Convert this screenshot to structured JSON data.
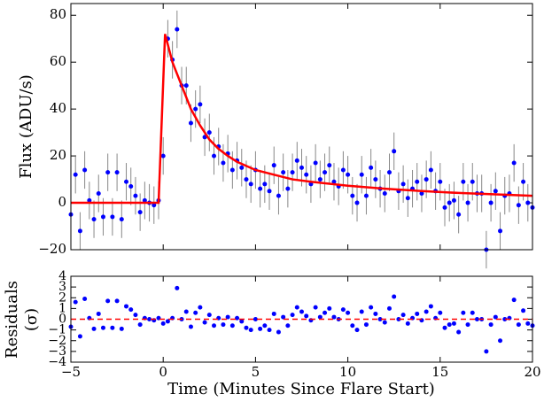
{
  "chart_data": [
    {
      "type": "scatter",
      "ylabel": "Flux (ADU/s)",
      "x": [
        -5,
        -4.75,
        -4.5,
        -4.25,
        -4,
        -3.75,
        -3.5,
        -3.25,
        -3,
        -2.75,
        -2.5,
        -2.25,
        -2,
        -1.75,
        -1.5,
        -1.25,
        -1,
        -0.75,
        -0.5,
        -0.25,
        0,
        0.25,
        0.5,
        0.75,
        1,
        1.25,
        1.5,
        1.75,
        2,
        2.25,
        2.5,
        2.75,
        3,
        3.25,
        3.5,
        3.75,
        4,
        4.25,
        4.5,
        4.75,
        5,
        5.25,
        5.5,
        5.75,
        6,
        6.25,
        6.5,
        6.75,
        7,
        7.25,
        7.5,
        7.75,
        8,
        8.25,
        8.5,
        8.75,
        9,
        9.25,
        9.5,
        9.75,
        10,
        10.25,
        10.5,
        10.75,
        11,
        11.25,
        11.5,
        11.75,
        12,
        12.25,
        12.5,
        12.75,
        13,
        13.25,
        13.5,
        13.75,
        14,
        14.25,
        14.5,
        14.75,
        15,
        15.25,
        15.5,
        15.75,
        16,
        16.25,
        16.5,
        16.75,
        17,
        17.25,
        17.5,
        17.75,
        18,
        18.25,
        18.5,
        18.75,
        19,
        19.25,
        19.5,
        19.75,
        20
      ],
      "series": [
        {
          "color": "#0000ff",
          "yerr": 8,
          "values": [
            -5,
            12,
            -12,
            14,
            1,
            -7,
            4,
            -6,
            13,
            -6,
            13,
            -7,
            9,
            7,
            3,
            -4,
            1,
            0,
            -1,
            1,
            20,
            70,
            61,
            74,
            50,
            50,
            34,
            40,
            42,
            28,
            30,
            20,
            24,
            17,
            21,
            14,
            18,
            15,
            10,
            8,
            14,
            6,
            8,
            5,
            16,
            3,
            13,
            6,
            13,
            18,
            15,
            12,
            8,
            17,
            10,
            13,
            16,
            9,
            7,
            14,
            12,
            3,
            0,
            12,
            3,
            15,
            10,
            6,
            4,
            13,
            22,
            5,
            8,
            2,
            6,
            9,
            4,
            10,
            14,
            5,
            9,
            -2,
            0,
            1,
            -5,
            9,
            0,
            9,
            4,
            4,
            -20,
            0,
            5,
            -12,
            3,
            4,
            17,
            -1,
            9,
            0,
            -2
          ]
        },
        {
          "color": "#ff0000",
          "line": true,
          "x": [
            -5,
            -0.25,
            0.1,
            0.5,
            1,
            1.5,
            2,
            2.5,
            3,
            3.5,
            4,
            5,
            6,
            7,
            8,
            10,
            12,
            14,
            16,
            18,
            20
          ],
          "values": [
            0,
            0,
            72,
            60,
            50,
            40,
            33,
            27,
            23,
            20,
            17.5,
            14,
            12,
            10,
            9,
            7.3,
            6,
            5,
            4.2,
            3.6,
            3
          ]
        }
      ],
      "xlim": [
        -5,
        20
      ],
      "ylim": [
        -20,
        85
      ],
      "yticks": [
        {
          "value": -20,
          "label": "−20"
        },
        0,
        20,
        40,
        60,
        80
      ]
    },
    {
      "type": "scatter",
      "ylabel": [
        "Residuals",
        "(σ)"
      ],
      "xlabel": "Time (Minutes Since Flare Start)",
      "series": [
        {
          "color": "#0000ff",
          "values": [
            -0.7,
            1.6,
            -1.6,
            1.9,
            0.1,
            -0.9,
            0.5,
            -0.8,
            1.7,
            -0.8,
            1.7,
            -0.9,
            1.2,
            0.9,
            0.4,
            -0.5,
            0.1,
            0,
            -0.1,
            0.1,
            -0.4,
            -0.2,
            0.1,
            2.9,
            0,
            0.7,
            -0.7,
            0.6,
            1.1,
            -0.3,
            0.4,
            -0.6,
            0.1,
            -0.5,
            0.2,
            -0.6,
            0.1,
            -0.2,
            -0.8,
            -1,
            0,
            -0.9,
            -0.6,
            -1,
            0.5,
            -1.2,
            0.2,
            -0.6,
            0.4,
            1.1,
            0.7,
            0.3,
            -0.1,
            1.1,
            0.2,
            0.6,
            1,
            0.2,
            0,
            0.9,
            0.6,
            -0.6,
            -1,
            0.7,
            -0.5,
            1.1,
            0.5,
            0,
            -0.3,
            1,
            2.1,
            0,
            0.4,
            -0.4,
            0.1,
            0.5,
            -0.1,
            0.7,
            1.2,
            0.1,
            0.6,
            -0.8,
            -0.5,
            -0.4,
            -1.2,
            0.6,
            -0.5,
            0.6,
            0,
            0,
            -3,
            -0.5,
            0.2,
            -2,
            0,
            0.1,
            1.8,
            -0.5,
            0.8,
            -0.4,
            -0.6
          ]
        },
        {
          "color": "#ff0000",
          "line": true,
          "dashed": true,
          "x": [
            -5,
            20
          ],
          "values": [
            0,
            0
          ]
        }
      ],
      "ylim": [
        -4,
        4
      ],
      "yticks": [
        {
          "value": -4,
          "label": "−4"
        },
        {
          "value": -3,
          "label": "−3"
        },
        {
          "value": -2,
          "label": "−2"
        },
        {
          "value": -1,
          "label": "−1"
        },
        0,
        1,
        2,
        3,
        4
      ],
      "xticks": [
        {
          "value": -5,
          "label": "−5"
        },
        0,
        5,
        10,
        15,
        20
      ]
    }
  ]
}
